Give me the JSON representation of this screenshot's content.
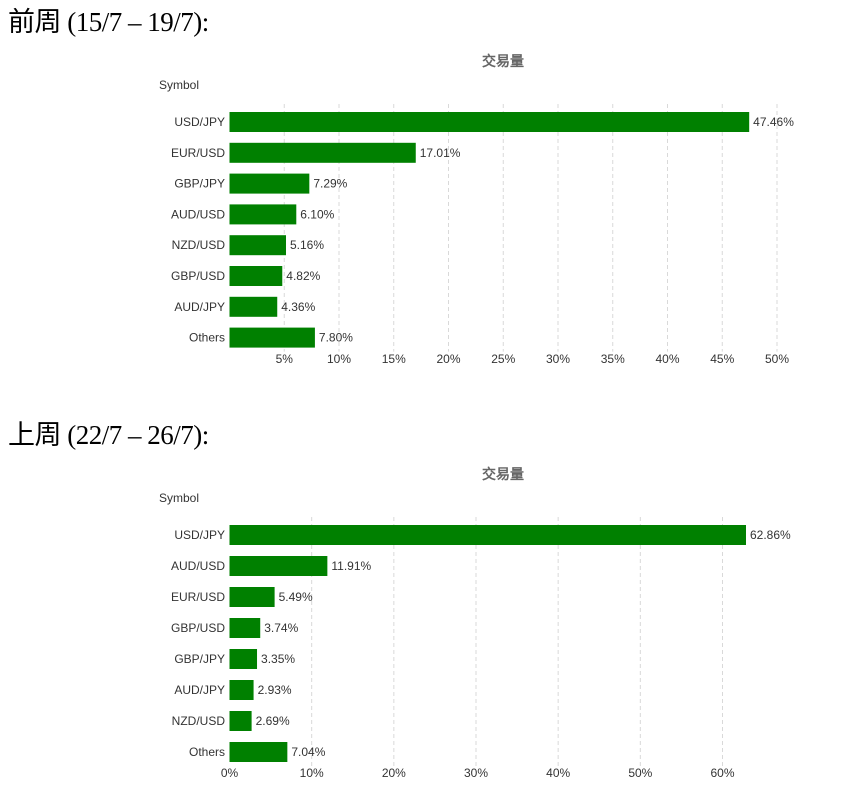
{
  "sections": [
    {
      "heading": "前周 (15/7 – 19/7):"
    },
    {
      "heading": "上周 (22/7 – 26/7):"
    }
  ],
  "colors": {
    "bar": "#008000",
    "grid": "#d9d9d9",
    "text": "#333333",
    "title": "#666666"
  },
  "chart_data": [
    {
      "type": "bar",
      "orientation": "horizontal",
      "title": "交易量",
      "ylabel": "Symbol",
      "xlabel": "",
      "categories": [
        "USD/JPY",
        "EUR/USD",
        "GBP/JPY",
        "AUD/USD",
        "NZD/USD",
        "GBP/USD",
        "AUD/JPY",
        "Others"
      ],
      "values": [
        47.46,
        17.01,
        7.29,
        6.1,
        5.16,
        4.82,
        4.36,
        7.8
      ],
      "value_labels": [
        "47.46%",
        "17.01%",
        "7.29%",
        "6.10%",
        "5.16%",
        "4.82%",
        "4.36%",
        "7.80%"
      ],
      "xlim": [
        0,
        50
      ],
      "xticks": [
        5,
        10,
        15,
        20,
        25,
        30,
        35,
        40,
        45,
        50
      ],
      "xtick_labels": [
        "5%",
        "10%",
        "15%",
        "20%",
        "25%",
        "30%",
        "35%",
        "40%",
        "45%",
        "50%"
      ],
      "grid": true
    },
    {
      "type": "bar",
      "orientation": "horizontal",
      "title": "交易量",
      "ylabel": "Symbol",
      "xlabel": "",
      "categories": [
        "USD/JPY",
        "AUD/USD",
        "EUR/USD",
        "GBP/USD",
        "GBP/JPY",
        "AUD/JPY",
        "NZD/USD",
        "Others"
      ],
      "values": [
        62.86,
        11.91,
        5.49,
        3.74,
        3.35,
        2.93,
        2.69,
        7.04
      ],
      "value_labels": [
        "62.86%",
        "11.91%",
        "5.49%",
        "3.74%",
        "3.35%",
        "2.93%",
        "2.69%",
        "7.04%"
      ],
      "xlim": [
        0,
        62.86
      ],
      "xticks": [
        0,
        10,
        20,
        30,
        40,
        50,
        60
      ],
      "xtick_labels": [
        "0%",
        "10%",
        "20%",
        "30%",
        "40%",
        "50%",
        "60%"
      ],
      "grid": true
    }
  ]
}
